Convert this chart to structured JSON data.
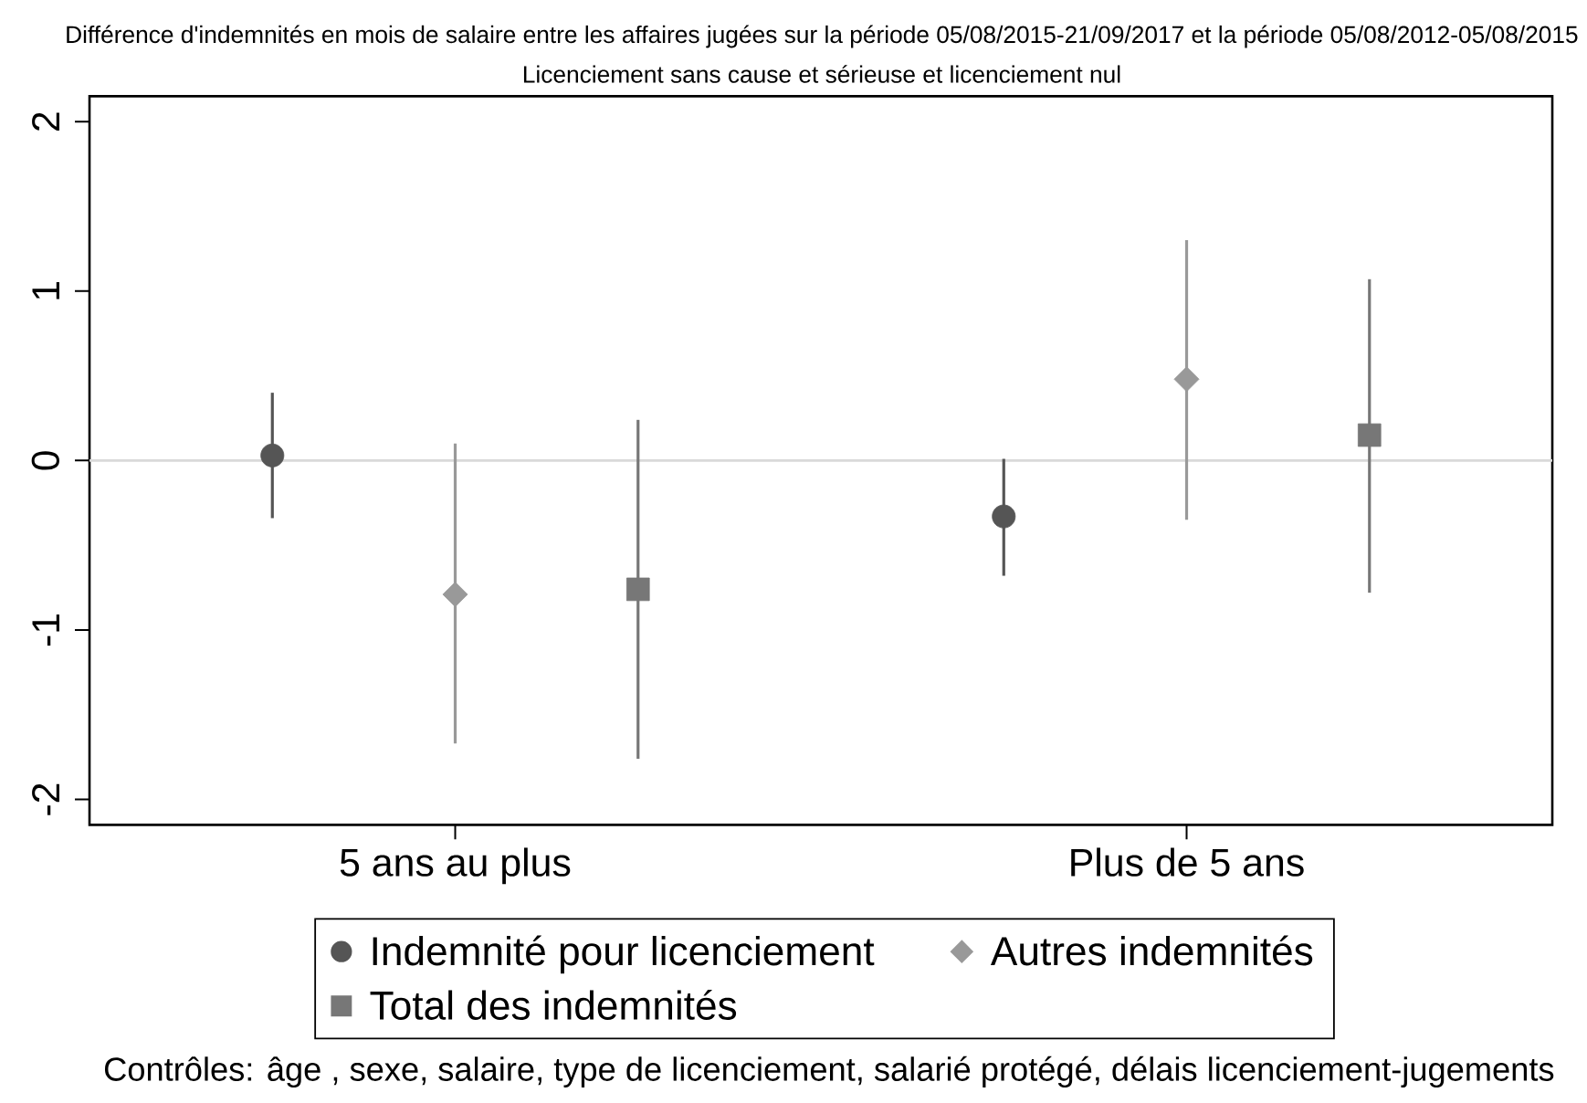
{
  "chart_data": {
    "type": "scatter",
    "title": "Différence d'indemnités en mois de salaire entre les affaires jugées sur la période 05/08/2015-21/09/2017 et la période 05/08/2012-05/08/2015",
    "subtitle": "Licenciement sans cause et sérieuse et licenciement nul",
    "annotations": [
      "Contrôles: âge , sexe, salaire, type de licenciement, salarié protégé, délais licenciement-jugements"
    ],
    "categories": [
      "5 ans au plus",
      "Plus de 5 ans"
    ],
    "series": [
      {
        "name": "Indemnité pour licenciement",
        "color": "#555555",
        "marker": "circle",
        "values": [
          0.03,
          -0.33
        ],
        "errors": [
          [
            -0.34,
            0.4
          ],
          [
            -0.68,
            0.01
          ]
        ]
      },
      {
        "name": "Autres indemnités",
        "color": "#999999",
        "marker": "diamond",
        "values": [
          -0.79,
          0.48
        ],
        "errors": [
          [
            -1.67,
            0.1
          ],
          [
            -0.35,
            1.3
          ]
        ]
      },
      {
        "name": "Total des indemnités",
        "color": "#777777",
        "marker": "square",
        "values": [
          -0.76,
          0.15
        ],
        "errors": [
          [
            -1.76,
            0.24
          ],
          [
            -0.78,
            1.07
          ]
        ]
      }
    ],
    "ylim": [
      -2.15,
      2.15
    ],
    "yticks": [
      -2,
      -1,
      0,
      1,
      2
    ],
    "ref_lines": [
      {
        "axis": "y",
        "value": 0,
        "color": "#d9d9d9"
      }
    ],
    "legend": "bottom"
  }
}
